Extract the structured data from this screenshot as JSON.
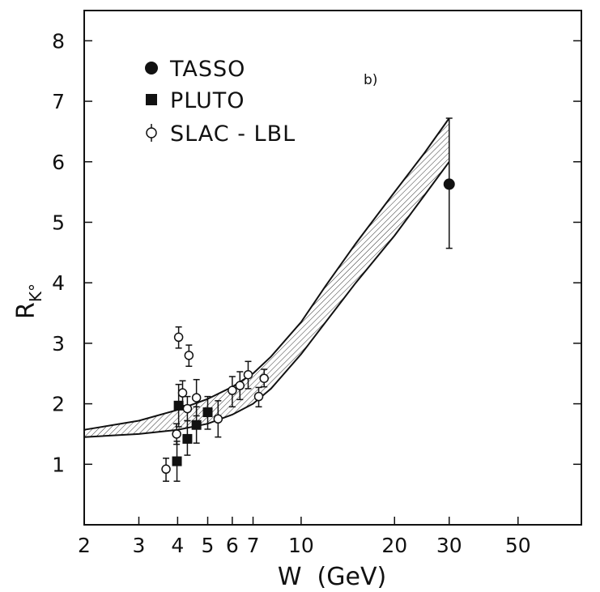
{
  "chart_data": {
    "type": "scatter",
    "title": "",
    "panel_label": "b)",
    "xlabel": "W  (GeV)",
    "ylabel": "R",
    "ylabel_sub": "K°",
    "x_scale": "log",
    "xlim": [
      2,
      80
    ],
    "ylim": [
      0,
      8.5
    ],
    "x_ticks": [
      2,
      3,
      4,
      5,
      6,
      7,
      10,
      20,
      30,
      50
    ],
    "y_ticks": [
      1,
      2,
      3,
      4,
      5,
      6,
      7,
      8
    ],
    "grid": false,
    "legend_position": "top-left",
    "series": [
      {
        "name": "TASSO",
        "marker": "filled-circle",
        "points": [
          {
            "x": 30.0,
            "y": 5.63,
            "lo": 4.57,
            "hi": 6.72
          }
        ]
      },
      {
        "name": "PLUTO",
        "marker": "filled-square",
        "points": [
          {
            "x": 3.98,
            "y": 1.05,
            "lo": 0.72,
            "hi": 1.38
          },
          {
            "x": 4.03,
            "y": 1.97,
            "lo": 1.62,
            "hi": 2.32
          },
          {
            "x": 4.3,
            "y": 1.42,
            "lo": 1.15,
            "hi": 1.72
          },
          {
            "x": 4.6,
            "y": 1.65,
            "lo": 1.35,
            "hi": 1.95
          },
          {
            "x": 5.0,
            "y": 1.86,
            "lo": 1.58,
            "hi": 2.12
          }
        ]
      },
      {
        "name": "SLAC - LBL",
        "marker": "open-circle",
        "points": [
          {
            "x": 3.67,
            "y": 0.92,
            "lo": 0.72,
            "hi": 1.1
          },
          {
            "x": 3.97,
            "y": 1.5,
            "lo": 1.33,
            "hi": 1.67
          },
          {
            "x": 4.03,
            "y": 3.1,
            "lo": 2.92,
            "hi": 3.27
          },
          {
            "x": 4.15,
            "y": 2.18,
            "lo": 1.97,
            "hi": 2.38
          },
          {
            "x": 4.3,
            "y": 1.92,
            "lo": 1.72,
            "hi": 2.12
          },
          {
            "x": 4.35,
            "y": 2.8,
            "lo": 2.62,
            "hi": 2.97
          },
          {
            "x": 4.6,
            "y": 2.1,
            "lo": 1.8,
            "hi": 2.4
          },
          {
            "x": 5.4,
            "y": 1.75,
            "lo": 1.45,
            "hi": 2.05
          },
          {
            "x": 6.0,
            "y": 2.22,
            "lo": 1.95,
            "hi": 2.45
          },
          {
            "x": 6.35,
            "y": 2.3,
            "lo": 2.07,
            "hi": 2.53
          },
          {
            "x": 6.75,
            "y": 2.48,
            "lo": 2.25,
            "hi": 2.7
          },
          {
            "x": 7.3,
            "y": 2.12,
            "lo": 1.95,
            "hi": 2.27
          },
          {
            "x": 7.6,
            "y": 2.42,
            "lo": 2.28,
            "hi": 2.57
          }
        ]
      }
    ],
    "band": {
      "style": "hatched",
      "upper": [
        [
          2,
          1.57
        ],
        [
          3,
          1.72
        ],
        [
          4,
          1.9
        ],
        [
          5,
          2.08
        ],
        [
          6,
          2.28
        ],
        [
          7,
          2.5
        ],
        [
          8,
          2.78
        ],
        [
          10,
          3.35
        ],
        [
          12,
          3.95
        ],
        [
          15,
          4.65
        ],
        [
          20,
          5.5
        ],
        [
          25,
          6.15
        ],
        [
          30,
          6.72
        ]
      ],
      "lower": [
        [
          2,
          1.45
        ],
        [
          3,
          1.5
        ],
        [
          4,
          1.57
        ],
        [
          5,
          1.67
        ],
        [
          6,
          1.82
        ],
        [
          7,
          2.0
        ],
        [
          8,
          2.25
        ],
        [
          10,
          2.82
        ],
        [
          12,
          3.35
        ],
        [
          15,
          4.0
        ],
        [
          20,
          4.78
        ],
        [
          25,
          5.45
        ],
        [
          30,
          6.0
        ]
      ]
    }
  }
}
